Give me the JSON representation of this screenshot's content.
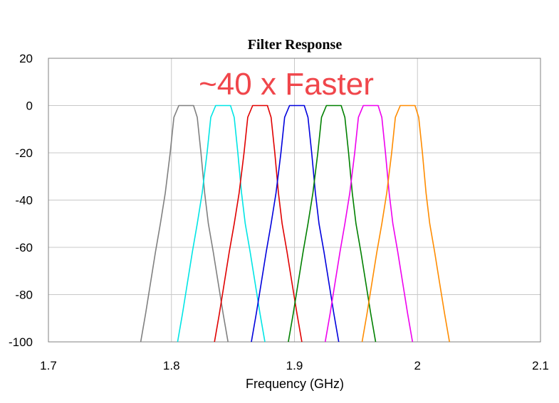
{
  "chart_data": {
    "type": "line",
    "title": "Filter Response",
    "xlabel": "Frequency (GHz)",
    "ylabel": "",
    "xlim": [
      1.7,
      2.1
    ],
    "ylim": [
      -100,
      20
    ],
    "xticks": [
      1.7,
      1.8,
      1.9,
      2.0,
      2.1
    ],
    "xtick_labels": [
      "1.7",
      "1.8",
      "1.9",
      "2",
      "2.1"
    ],
    "yticks": [
      20,
      0,
      -20,
      -40,
      -60,
      -80,
      -100
    ],
    "ytick_labels": [
      "20",
      "0",
      "-20",
      "-40",
      "-60",
      "-80",
      "-100"
    ],
    "grid": true,
    "legend": "none",
    "annotation": {
      "text": "~40 x Faster",
      "color": "#f0464b"
    },
    "series": [
      {
        "color": "#808080",
        "x": [
          1.775,
          1.779,
          1.783,
          1.787,
          1.791,
          1.795,
          1.799,
          1.802,
          1.806,
          1.812,
          1.818,
          1.821,
          1.824,
          1.827,
          1.83,
          1.834,
          1.838,
          1.842,
          1.846
        ],
        "y": [
          -100,
          -88,
          -75,
          -62,
          -50,
          -37,
          -20,
          -5,
          0,
          0,
          0,
          -5,
          -20,
          -37,
          -50,
          -62,
          -75,
          -88,
          -100
        ]
      },
      {
        "color": "#00e5e5",
        "x": [
          1.805,
          1.809,
          1.813,
          1.817,
          1.821,
          1.825,
          1.829,
          1.832,
          1.836,
          1.842,
          1.848,
          1.851,
          1.854,
          1.857,
          1.86,
          1.864,
          1.868,
          1.872,
          1.876
        ],
        "y": [
          -100,
          -88,
          -75,
          -62,
          -50,
          -37,
          -20,
          -5,
          0,
          0,
          0,
          -5,
          -20,
          -37,
          -50,
          -62,
          -75,
          -88,
          -100
        ]
      },
      {
        "color": "#e00000",
        "x": [
          1.835,
          1.839,
          1.843,
          1.847,
          1.851,
          1.855,
          1.859,
          1.862,
          1.866,
          1.872,
          1.878,
          1.881,
          1.884,
          1.887,
          1.89,
          1.894,
          1.898,
          1.902,
          1.906
        ],
        "y": [
          -100,
          -88,
          -75,
          -62,
          -50,
          -37,
          -20,
          -5,
          0,
          0,
          0,
          -5,
          -20,
          -37,
          -50,
          -62,
          -75,
          -88,
          -100
        ]
      },
      {
        "color": "#0000dd",
        "x": [
          1.865,
          1.869,
          1.873,
          1.877,
          1.881,
          1.885,
          1.889,
          1.892,
          1.896,
          1.902,
          1.908,
          1.911,
          1.914,
          1.917,
          1.92,
          1.924,
          1.928,
          1.932,
          1.936
        ],
        "y": [
          -100,
          -88,
          -75,
          -62,
          -50,
          -37,
          -20,
          -5,
          0,
          0,
          0,
          -5,
          -20,
          -37,
          -50,
          -62,
          -75,
          -88,
          -100
        ]
      },
      {
        "color": "#008000",
        "x": [
          1.895,
          1.899,
          1.903,
          1.907,
          1.911,
          1.915,
          1.919,
          1.922,
          1.926,
          1.932,
          1.938,
          1.941,
          1.944,
          1.947,
          1.95,
          1.954,
          1.958,
          1.962,
          1.966
        ],
        "y": [
          -100,
          -88,
          -75,
          -62,
          -50,
          -37,
          -20,
          -5,
          0,
          0,
          0,
          -5,
          -20,
          -37,
          -50,
          -62,
          -75,
          -88,
          -100
        ]
      },
      {
        "color": "#ee00ee",
        "x": [
          1.925,
          1.929,
          1.933,
          1.937,
          1.941,
          1.945,
          1.949,
          1.952,
          1.956,
          1.962,
          1.968,
          1.971,
          1.974,
          1.977,
          1.98,
          1.984,
          1.988,
          1.992,
          1.996
        ],
        "y": [
          -100,
          -88,
          -75,
          -62,
          -50,
          -37,
          -20,
          -5,
          0,
          0,
          0,
          -5,
          -20,
          -37,
          -50,
          -62,
          -75,
          -88,
          -100
        ]
      },
      {
        "color": "#ff8c00",
        "x": [
          1.955,
          1.959,
          1.963,
          1.967,
          1.971,
          1.975,
          1.979,
          1.982,
          1.986,
          1.992,
          1.998,
          2.001,
          2.004,
          2.007,
          2.01,
          2.014,
          2.018,
          2.022,
          2.026
        ],
        "y": [
          -100,
          -88,
          -75,
          -62,
          -50,
          -37,
          -20,
          -5,
          0,
          0,
          0,
          -5,
          -20,
          -37,
          -50,
          -62,
          -75,
          -88,
          -100
        ]
      }
    ]
  }
}
